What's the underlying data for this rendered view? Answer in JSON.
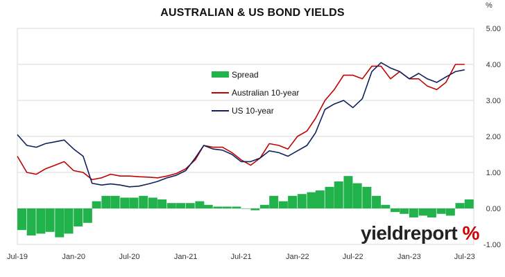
{
  "title": "AUSTRALIAN & US BOND YIELDS",
  "unit": "%",
  "watermark": "yieldreport",
  "watermark_symbol": "%",
  "colors": {
    "spread": "#22b24c",
    "au": "#c00000",
    "us": "#0f1f5c",
    "grid": "#d9d9d9"
  },
  "chart_data": {
    "type": "line",
    "title": "AUSTRALIAN & US BOND YIELDS",
    "ylabel": "%",
    "ylim": [
      -1.0,
      5.0
    ],
    "xlim": [
      "2019-07-01",
      "2023-07-31"
    ],
    "y_ticks": [
      "-1.00",
      "0.00",
      "1.00",
      "2.00",
      "3.00",
      "4.00",
      "5.00"
    ],
    "x_ticks": [
      "Jul-19",
      "Jan-20",
      "Jul-20",
      "Jan-21",
      "Jul-21",
      "Jan-22",
      "Jul-22",
      "Jan-23",
      "Jul-23"
    ],
    "x_tick_dates": [
      "2019-07-01",
      "2020-01-01",
      "2020-07-01",
      "2021-01-01",
      "2021-07-01",
      "2022-01-01",
      "2022-07-01",
      "2023-01-01",
      "2023-07-01"
    ],
    "grid": true,
    "legend_position": "upper-left-center",
    "x": [
      "2019-07-01",
      "2019-08-01",
      "2019-09-01",
      "2019-10-01",
      "2019-11-01",
      "2019-12-01",
      "2020-01-01",
      "2020-02-01",
      "2020-03-01",
      "2020-04-01",
      "2020-05-01",
      "2020-06-01",
      "2020-07-01",
      "2020-08-01",
      "2020-09-01",
      "2020-10-01",
      "2020-11-01",
      "2020-12-01",
      "2021-01-01",
      "2021-02-01",
      "2021-03-01",
      "2021-04-01",
      "2021-05-01",
      "2021-06-01",
      "2021-07-01",
      "2021-08-01",
      "2021-09-01",
      "2021-10-01",
      "2021-11-01",
      "2021-12-01",
      "2022-01-01",
      "2022-02-01",
      "2022-03-01",
      "2022-04-01",
      "2022-05-01",
      "2022-06-01",
      "2022-07-01",
      "2022-08-01",
      "2022-09-01",
      "2022-10-01",
      "2022-11-01",
      "2022-12-01",
      "2023-01-01",
      "2023-02-01",
      "2023-03-01",
      "2023-04-01",
      "2023-05-01",
      "2023-06-01",
      "2023-07-01"
    ],
    "series": [
      {
        "name": "Spread",
        "type": "bar",
        "values": [
          -0.6,
          -0.75,
          -0.7,
          -0.65,
          -0.8,
          -0.7,
          -0.5,
          -0.4,
          0.2,
          0.35,
          0.35,
          0.3,
          0.3,
          0.35,
          0.3,
          0.25,
          0.15,
          0.15,
          0.15,
          0.2,
          0.1,
          0.05,
          0.05,
          0.05,
          0.0,
          -0.05,
          0.1,
          0.35,
          0.2,
          0.35,
          0.4,
          0.45,
          0.5,
          0.6,
          0.75,
          0.9,
          0.7,
          0.6,
          0.35,
          0.1,
          -0.1,
          -0.15,
          -0.25,
          -0.2,
          -0.25,
          -0.15,
          -0.2,
          0.15,
          0.25
        ]
      },
      {
        "name": "Australian 10-year",
        "type": "line",
        "values": [
          1.45,
          1.0,
          0.95,
          1.1,
          1.2,
          1.3,
          1.05,
          1.0,
          0.8,
          0.85,
          0.95,
          0.9,
          0.9,
          0.88,
          0.87,
          0.85,
          0.9,
          0.97,
          1.1,
          1.35,
          1.75,
          1.7,
          1.7,
          1.55,
          1.35,
          1.2,
          1.4,
          1.8,
          1.75,
          1.65,
          2.0,
          2.15,
          2.5,
          3.0,
          3.3,
          3.7,
          3.7,
          3.6,
          3.95,
          3.95,
          3.6,
          3.8,
          3.6,
          3.6,
          3.4,
          3.3,
          3.5,
          4.0,
          4.0
        ]
      },
      {
        "name": "US 10-year",
        "type": "line",
        "values": [
          2.05,
          1.75,
          1.7,
          1.8,
          1.85,
          1.9,
          1.65,
          1.45,
          0.7,
          0.65,
          0.68,
          0.65,
          0.6,
          0.62,
          0.68,
          0.75,
          0.85,
          0.92,
          1.05,
          1.4,
          1.75,
          1.65,
          1.62,
          1.5,
          1.3,
          1.3,
          1.4,
          1.6,
          1.55,
          1.45,
          1.6,
          1.75,
          2.1,
          2.75,
          2.9,
          3.0,
          2.8,
          3.05,
          3.8,
          4.05,
          3.9,
          3.8,
          3.6,
          3.75,
          3.6,
          3.5,
          3.65,
          3.8,
          3.85
        ]
      }
    ]
  }
}
